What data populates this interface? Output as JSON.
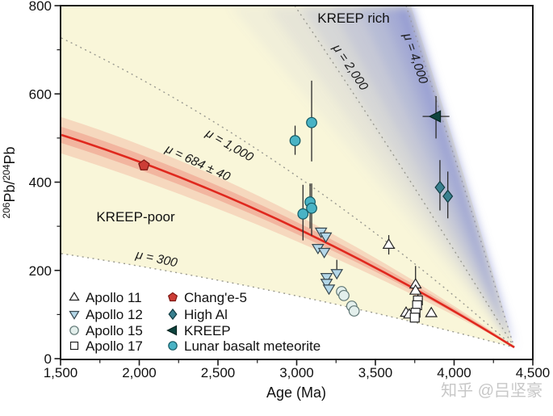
{
  "watermark": "知乎 @吕坚豪",
  "chart_data": {
    "type": "scatter",
    "title": "",
    "xlabel": "Age (Ma)",
    "ylabel": "206Pb/204Pb",
    "ylabel_parts": {
      "sup1": "206",
      "mid": "Pb/",
      "sup2": "204",
      "end": "Pb"
    },
    "xlim": [
      1500,
      4500
    ],
    "ylim": [
      0,
      800
    ],
    "grid": false,
    "legend_position": "lower-left, two columns, no frame",
    "x_ticks": [
      {
        "v": 1500,
        "label": "1,500"
      },
      {
        "v": 2000,
        "label": "2,000"
      },
      {
        "v": 2500,
        "label": "2,500"
      },
      {
        "v": 3000,
        "label": "3,000"
      },
      {
        "v": 3500,
        "label": "3,500"
      },
      {
        "v": 4000,
        "label": "4,000"
      },
      {
        "v": 4500,
        "label": "4,500"
      }
    ],
    "x_minor_ticks": [
      1750,
      2250,
      2750,
      3250,
      3750,
      4250
    ],
    "y_ticks": [
      {
        "v": 0,
        "label": "0"
      },
      {
        "v": 200,
        "label": "200"
      },
      {
        "v": 400,
        "label": "400"
      },
      {
        "v": 600,
        "label": "600"
      },
      {
        "v": 800,
        "label": "800"
      }
    ],
    "y_minor_ticks": [
      100,
      300,
      500,
      700
    ],
    "regions": [
      {
        "name": "KREEP-poor",
        "color": "#f9f6d9"
      },
      {
        "name": "KREEP rich",
        "color": "#8690d2"
      }
    ],
    "apex": {
      "age": 4380,
      "v": 25,
      "note": "all model lines converge here"
    },
    "mu_lines": [
      {
        "label": "μ = 300",
        "mu": 300,
        "style": "dotted",
        "color": "#999990",
        "left_value": 238
      },
      {
        "label": "μ = 684 ± 40",
        "mu": 684,
        "style": "solid",
        "color": "#e0281e",
        "band": "pink confidence band",
        "left_value": 507
      },
      {
        "label": "μ = 1,000",
        "mu": 1000,
        "style": "dotted",
        "color": "#999990",
        "left_value": 727
      },
      {
        "label": "μ = 2,000",
        "mu": 2000,
        "style": "dotted",
        "color": "#999990",
        "top_age": 2985
      },
      {
        "label": "μ = 4,000",
        "mu": 4000,
        "style": "dotted",
        "color": "#999990",
        "top_age": 3695
      }
    ],
    "series": [
      {
        "name": "Apollo 11",
        "marker": "triangle-up",
        "fill": "#ffffff",
        "stroke": "#222222",
        "points": [
          {
            "age": 3585,
            "v": 258,
            "yerr": [
              22,
              22
            ]
          },
          {
            "age": 3755,
            "v": 168,
            "yerr": [
              10,
              42
            ]
          },
          {
            "age": 3755,
            "v": 154
          },
          {
            "age": 3695,
            "v": 104
          },
          {
            "age": 3715,
            "v": 100
          },
          {
            "age": 3855,
            "v": 103
          }
        ]
      },
      {
        "name": "Apollo 12",
        "marker": "triangle-down",
        "fill": "#b4d7e8",
        "stroke": "#37474f",
        "points": [
          {
            "age": 3155,
            "v": 288
          },
          {
            "age": 3185,
            "v": 277
          },
          {
            "age": 3135,
            "v": 251
          },
          {
            "age": 3175,
            "v": 242
          },
          {
            "age": 3255,
            "v": 194,
            "yerr": [
              8,
              30
            ]
          },
          {
            "age": 3190,
            "v": 185
          },
          {
            "age": 3190,
            "v": 172
          },
          {
            "age": 3205,
            "v": 159
          }
        ]
      },
      {
        "name": "Apollo 15",
        "marker": "circle",
        "fill": "#e3efec",
        "stroke": "#5f7674",
        "points": [
          {
            "age": 3285,
            "v": 152
          },
          {
            "age": 3300,
            "v": 143
          },
          {
            "age": 3350,
            "v": 119
          },
          {
            "age": 3365,
            "v": 108
          }
        ]
      },
      {
        "name": "Apollo 17",
        "marker": "square",
        "fill": "#ffffff",
        "stroke": "#222222",
        "points": [
          {
            "age": 3770,
            "v": 132,
            "yerr": [
              8,
              38
            ]
          },
          {
            "age": 3765,
            "v": 121
          },
          {
            "age": 3755,
            "v": 104
          },
          {
            "age": 3750,
            "v": 93
          }
        ]
      },
      {
        "name": "Chang'e-5",
        "marker": "pentagon",
        "fill": "#cc3d36",
        "stroke": "#7c1712",
        "points": [
          {
            "age": 2030,
            "v": 438,
            "yerr": [
              8,
              8
            ]
          }
        ]
      },
      {
        "name": "High Al",
        "marker": "diamond",
        "fill": "#39808f",
        "stroke": "#113b41",
        "points": [
          {
            "age": 3910,
            "v": 388,
            "yerr": [
              52,
              62
            ]
          },
          {
            "age": 3960,
            "v": 368,
            "yerr": [
              50,
              56
            ]
          }
        ]
      },
      {
        "name": "KREEP",
        "marker": "triangle-left",
        "fill": "#0e443e",
        "stroke": "#06231f",
        "points": [
          {
            "age": 3885,
            "v": 549,
            "yerr": [
              50,
              46
            ],
            "xerr": 85
          }
        ]
      },
      {
        "name": "Lunar basalt meteorite",
        "marker": "circle",
        "fill": "#49b3c5",
        "stroke": "#155a64",
        "points": [
          {
            "age": 3095,
            "v": 535,
            "yerr": [
              88,
              95
            ]
          },
          {
            "age": 2990,
            "v": 494,
            "yerr": [
              32,
              34
            ]
          },
          {
            "age": 3085,
            "v": 355,
            "yerr": [
              60,
              42
            ]
          },
          {
            "age": 3095,
            "v": 341,
            "yerr": [
              62,
              56
            ]
          },
          {
            "age": 3040,
            "v": 328,
            "yerr": [
              60,
              66
            ]
          }
        ]
      }
    ]
  }
}
